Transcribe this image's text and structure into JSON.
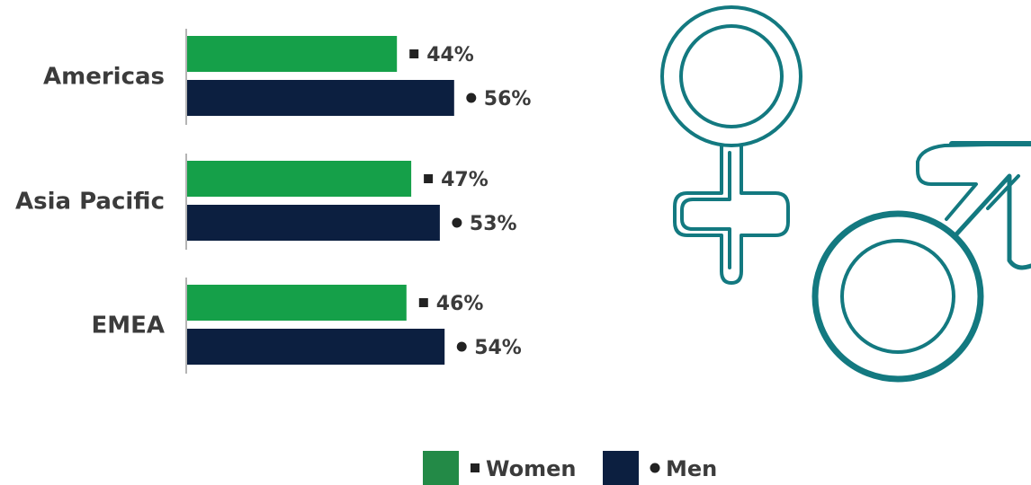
{
  "chart_data": {
    "type": "bar",
    "orientation": "horizontal",
    "categories": [
      "Americas",
      "Asia Pacific",
      "EMEA"
    ],
    "series": [
      {
        "name": "Women",
        "values": [
          44,
          47,
          46
        ],
        "unit": "%",
        "color": "#15a049",
        "marker": "square"
      },
      {
        "name": "Men",
        "values": [
          56,
          53,
          54
        ],
        "unit": "%",
        "color": "#0c1f40",
        "marker": "circle"
      }
    ],
    "title": "",
    "xlabel": "",
    "ylabel": "",
    "xlim": [
      0,
      100
    ],
    "grid": false,
    "legend_position": "bottom-center",
    "legend_swatches": {
      "Women": "#238a47",
      "Men": "#0c1f40"
    }
  },
  "decoration": {
    "icons": [
      "female-symbol-icon",
      "male-symbol-icon"
    ],
    "color": "#137980"
  }
}
